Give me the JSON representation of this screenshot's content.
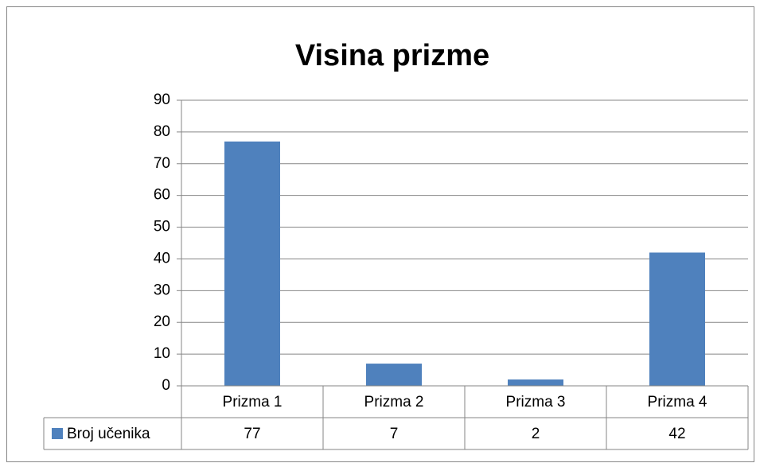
{
  "chart_data": {
    "type": "bar",
    "title": "Visina prizme",
    "categories": [
      "Prizma 1",
      "Prizma 2",
      "Prizma 3",
      "Prizma 4"
    ],
    "series": [
      {
        "name": "Broj učenika",
        "color": "#4f81bd",
        "values": [
          77,
          7,
          2,
          42
        ]
      }
    ],
    "ylim": [
      0,
      90
    ],
    "yticks": [
      0,
      10,
      20,
      30,
      40,
      50,
      60,
      70,
      80,
      90
    ],
    "grid": true,
    "data_table": true
  }
}
